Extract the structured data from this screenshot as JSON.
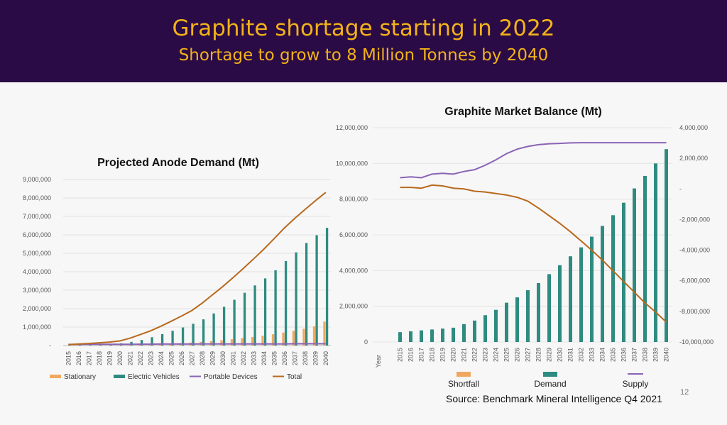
{
  "header": {
    "title": "Graphite shortage starting in 2022",
    "subtitle": "Shortage to grow to 8 Million Tonnes by 2040"
  },
  "colors": {
    "banner_bg": "#2b0b45",
    "banner_text": "#f2b21a",
    "stationary": "#f0a860",
    "ev": "#2e8b80",
    "portable": "#8a63b5",
    "total": "#b8691e",
    "shortfall": "#f0a860",
    "demand": "#2e8b80",
    "supply": "#8a63b5",
    "balance_line": "#b8691e"
  },
  "chart_data": [
    {
      "type": "bar",
      "title": "Projected Anode Demand (Mt)",
      "categories": [
        "2015",
        "2016",
        "2017",
        "2018",
        "2019",
        "2020",
        "2021",
        "2022",
        "2023",
        "2024",
        "2025",
        "2026",
        "2027",
        "2028",
        "2029",
        "2030",
        "2031",
        "2032",
        "2033",
        "2034",
        "2035",
        "2036",
        "2037",
        "2038",
        "2039",
        "2040"
      ],
      "ylim": [
        0,
        9000000
      ],
      "yticks": [
        {
          "v": 0,
          "label": "-"
        },
        {
          "v": 1000000,
          "label": "1,000,000"
        },
        {
          "v": 2000000,
          "label": "2,000,000"
        },
        {
          "v": 3000000,
          "label": "3,000,000"
        },
        {
          "v": 4000000,
          "label": "4,000,000"
        },
        {
          "v": 5000000,
          "label": "5,000,000"
        },
        {
          "v": 6000000,
          "label": "6,000,000"
        },
        {
          "v": 7000000,
          "label": "7,000,000"
        },
        {
          "v": 8000000,
          "label": "8,000,000"
        },
        {
          "v": 9000000,
          "label": "9,000,000"
        }
      ],
      "series": [
        {
          "name": "Stationary",
          "kind": "bar",
          "values": [
            5000,
            8000,
            10000,
            12000,
            15000,
            20000,
            30000,
            40000,
            60000,
            80000,
            100000,
            130000,
            160000,
            200000,
            240000,
            290000,
            340000,
            400000,
            460000,
            530000,
            610000,
            700000,
            800000,
            910000,
            1040000,
            1300000
          ]
        },
        {
          "name": "Electric Vehicles",
          "kind": "bar",
          "values": [
            30000,
            50000,
            60000,
            80000,
            90000,
            120000,
            200000,
            300000,
            450000,
            620000,
            800000,
            980000,
            1180000,
            1420000,
            1740000,
            2100000,
            2480000,
            2860000,
            3260000,
            3640000,
            4080000,
            4580000,
            5050000,
            5560000,
            5980000,
            6380000
          ]
        },
        {
          "name": "Portable Devices",
          "kind": "line",
          "values": [
            60000,
            60000,
            65000,
            65000,
            70000,
            70000,
            70000,
            75000,
            75000,
            80000,
            80000,
            80000,
            80000,
            85000,
            85000,
            85000,
            85000,
            90000,
            90000,
            90000,
            90000,
            90000,
            95000,
            95000,
            95000,
            95000
          ]
        },
        {
          "name": "Total",
          "kind": "line",
          "values": [
            50000,
            80000,
            110000,
            150000,
            190000,
            250000,
            400000,
            600000,
            800000,
            1050000,
            1320000,
            1600000,
            1900000,
            2300000,
            2750000,
            3200000,
            3680000,
            4180000,
            4700000,
            5230000,
            5800000,
            6380000,
            6900000,
            7380000,
            7850000,
            8300000
          ]
        }
      ]
    },
    {
      "type": "bar",
      "title": "Graphite Market Balance (Mt)",
      "xlabel": "Year",
      "categories": [
        "2015",
        "2016",
        "2017",
        "2018",
        "2019",
        "2020",
        "2021",
        "2022",
        "2023",
        "2024",
        "2025",
        "2026",
        "2027",
        "2028",
        "2029",
        "2030",
        "2031",
        "2032",
        "2033",
        "2034",
        "2035",
        "2036",
        "2037",
        "2038",
        "2039",
        "2040"
      ],
      "ylim_left": [
        0,
        12000000
      ],
      "ylim_right": [
        -10000000,
        4000000
      ],
      "yticks_left": [
        {
          "v": 0,
          "label": "0"
        },
        {
          "v": 2000000,
          "label": "2,000,000"
        },
        {
          "v": 4000000,
          "label": "4,000,000"
        },
        {
          "v": 6000000,
          "label": "6,000,000"
        },
        {
          "v": 8000000,
          "label": "8,000,000"
        },
        {
          "v": 10000000,
          "label": "10,000,000"
        },
        {
          "v": 12000000,
          "label": "12,000,000"
        }
      ],
      "yticks_right": [
        {
          "v": 4000000,
          "label": "4,000,000"
        },
        {
          "v": 2000000,
          "label": "2,000,000"
        },
        {
          "v": 0,
          "label": "-"
        },
        {
          "v": -2000000,
          "label": "-2,000,000"
        },
        {
          "v": -4000000,
          "label": "-4,000,000"
        },
        {
          "v": -6000000,
          "label": "-6,000,000"
        },
        {
          "v": -8000000,
          "label": "-8,000,000"
        },
        {
          "v": -10000000,
          "label": "-10,000,000"
        }
      ],
      "series": [
        {
          "name": "Shortfall",
          "kind": "line",
          "axis": "right",
          "values": [
            100000,
            100000,
            50000,
            250000,
            200000,
            50000,
            0,
            -150000,
            -200000,
            -300000,
            -400000,
            -550000,
            -800000,
            -1250000,
            -1750000,
            -2250000,
            -2800000,
            -3400000,
            -4000000,
            -4650000,
            -5350000,
            -6050000,
            -6750000,
            -7450000,
            -8050000,
            -8700000
          ]
        },
        {
          "name": "Demand",
          "kind": "bar",
          "axis": "left",
          "values": [
            550000,
            600000,
            650000,
            700000,
            750000,
            800000,
            1000000,
            1200000,
            1500000,
            1800000,
            2200000,
            2500000,
            2900000,
            3300000,
            3800000,
            4300000,
            4800000,
            5300000,
            5900000,
            6500000,
            7100000,
            7800000,
            8600000,
            9300000,
            10000000,
            10800000
          ]
        },
        {
          "name": "Supply",
          "kind": "line",
          "axis": "left",
          "values": [
            9200000,
            9250000,
            9200000,
            9400000,
            9450000,
            9400000,
            9550000,
            9650000,
            9900000,
            10200000,
            10550000,
            10800000,
            10950000,
            11050000,
            11100000,
            11120000,
            11150000,
            11160000,
            11160000,
            11160000,
            11160000,
            11160000,
            11160000,
            11160000,
            11160000,
            11160000
          ]
        }
      ]
    }
  ],
  "legend_left": [
    "Stationary",
    "Electric Vehicles",
    "Portable Devices",
    "Total"
  ],
  "legend_right": [
    "Shortfall",
    "Demand",
    "Supply"
  ],
  "source_label": "Source:",
  "source_text": "Benchmark Mineral Intelligence Q4 2021",
  "page_number": "12"
}
